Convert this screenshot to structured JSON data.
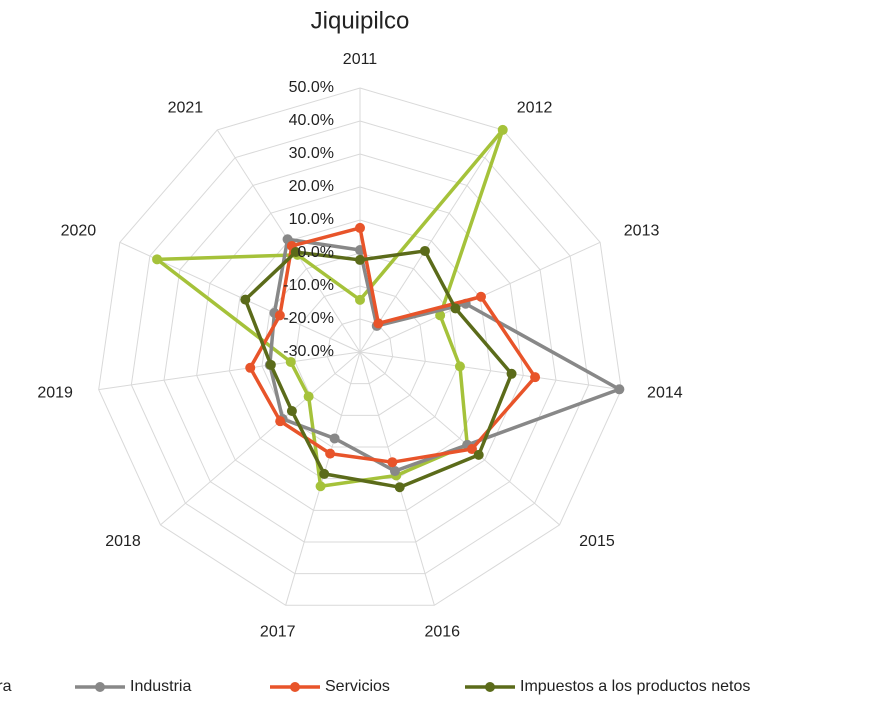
{
  "chart_data": {
    "type": "radar",
    "title": "Jiquipilco",
    "categories": [
      "2011",
      "2012",
      "2013",
      "2014",
      "2015",
      "2016",
      "2017",
      "2018",
      "2019",
      "2020",
      "2021"
    ],
    "rlim": [
      -30,
      50
    ],
    "rticks": [
      {
        "value": -30,
        "label": "-30.0%"
      },
      {
        "value": -20,
        "label": "-20.0%"
      },
      {
        "value": -10,
        "label": "-10.0%"
      },
      {
        "value": 0,
        "label": "0.0%"
      },
      {
        "value": 10,
        "label": "10.0%"
      },
      {
        "value": 20,
        "label": "20.0%"
      },
      {
        "value": 30,
        "label": "30.0%"
      },
      {
        "value": 40,
        "label": "40.0%"
      },
      {
        "value": 50,
        "label": "50.0%"
      }
    ],
    "grid": true,
    "legend": "bottom",
    "series": [
      {
        "name": "Agricultura",
        "color": "#a5c23a",
        "values": [
          -14.2,
          50,
          -3.3,
          0.6,
          13,
          9,
          12.4,
          -9.4,
          -8.8,
          37.6,
          5
        ]
      },
      {
        "name": "Industria",
        "color": "#888888",
        "values": [
          0.9,
          -20.6,
          5.2,
          49.4,
          13,
          7.6,
          -2.7,
          1,
          -2.4,
          -1.5,
          10.6
        ]
      },
      {
        "name": "Servicios",
        "color": "#e8542a",
        "values": [
          7.6,
          -19.7,
          10.3,
          23.6,
          14.9,
          4.8,
          2.1,
          2,
          3.6,
          -3.3,
          8.2
        ]
      },
      {
        "name": "Impuestos a los productos netos",
        "color": "#5b6b1a",
        "values": [
          -2.1,
          6.4,
          1.8,
          16.4,
          17.6,
          12.7,
          8.5,
          -2.7,
          -2.7,
          8.2,
          6
        ]
      }
    ]
  }
}
